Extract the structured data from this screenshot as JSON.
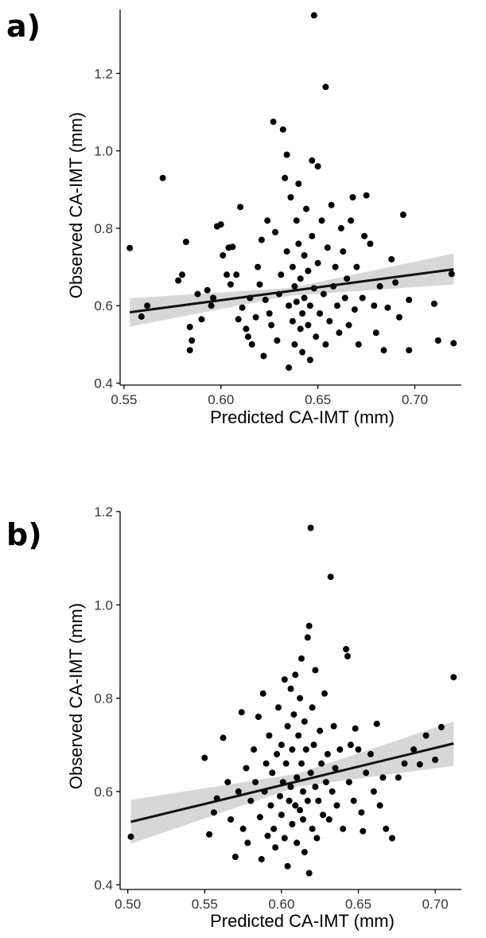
{
  "chart_data": [
    {
      "type": "scatter",
      "panel_label": "a)",
      "xlabel": "Predicted CA-IMT (mm)",
      "ylabel": "Observed CA-IMT (mm)",
      "xlim": [
        0.548,
        0.724
      ],
      "ylim": [
        0.395,
        1.365
      ],
      "x_ticks": [
        0.55,
        0.6,
        0.65,
        0.7
      ],
      "x_tick_labels": [
        "0.55",
        "0.60",
        "0.65",
        "0.70"
      ],
      "y_ticks": [
        0.4,
        0.6,
        0.8,
        1.0,
        1.2
      ],
      "y_tick_labels": [
        "0.4",
        "0.6",
        "0.8",
        "1.0",
        "1.2"
      ],
      "fit_line": {
        "x": [
          0.553,
          0.72
        ],
        "y": [
          0.583,
          0.694
        ]
      },
      "confidence_band": {
        "x": [
          0.553,
          0.636,
          0.72
        ],
        "lower": [
          0.546,
          0.626,
          0.655
        ],
        "upper": [
          0.619,
          0.646,
          0.735
        ]
      },
      "points": [
        {
          "x": 0.553,
          "y": 0.749
        },
        {
          "x": 0.559,
          "y": 0.572
        },
        {
          "x": 0.562,
          "y": 0.6
        },
        {
          "x": 0.57,
          "y": 0.93
        },
        {
          "x": 0.578,
          "y": 0.665
        },
        {
          "x": 0.58,
          "y": 0.68
        },
        {
          "x": 0.582,
          "y": 0.765
        },
        {
          "x": 0.584,
          "y": 0.545
        },
        {
          "x": 0.584,
          "y": 0.485
        },
        {
          "x": 0.585,
          "y": 0.51
        },
        {
          "x": 0.588,
          "y": 0.63
        },
        {
          "x": 0.59,
          "y": 0.565
        },
        {
          "x": 0.593,
          "y": 0.64
        },
        {
          "x": 0.595,
          "y": 0.6
        },
        {
          "x": 0.596,
          "y": 0.62
        },
        {
          "x": 0.598,
          "y": 0.805
        },
        {
          "x": 0.6,
          "y": 0.81
        },
        {
          "x": 0.601,
          "y": 0.73
        },
        {
          "x": 0.603,
          "y": 0.68
        },
        {
          "x": 0.604,
          "y": 0.75
        },
        {
          "x": 0.605,
          "y": 0.655
        },
        {
          "x": 0.606,
          "y": 0.752
        },
        {
          "x": 0.608,
          "y": 0.68
        },
        {
          "x": 0.609,
          "y": 0.565
        },
        {
          "x": 0.61,
          "y": 0.855
        },
        {
          "x": 0.611,
          "y": 0.595
        },
        {
          "x": 0.613,
          "y": 0.54
        },
        {
          "x": 0.614,
          "y": 0.52
        },
        {
          "x": 0.615,
          "y": 0.62
        },
        {
          "x": 0.616,
          "y": 0.5
        },
        {
          "x": 0.618,
          "y": 0.57
        },
        {
          "x": 0.619,
          "y": 0.7
        },
        {
          "x": 0.62,
          "y": 0.655
        },
        {
          "x": 0.621,
          "y": 0.77
        },
        {
          "x": 0.622,
          "y": 0.47
        },
        {
          "x": 0.623,
          "y": 0.615
        },
        {
          "x": 0.624,
          "y": 0.82
        },
        {
          "x": 0.625,
          "y": 0.58
        },
        {
          "x": 0.626,
          "y": 0.55
        },
        {
          "x": 0.627,
          "y": 1.075
        },
        {
          "x": 0.628,
          "y": 0.79
        },
        {
          "x": 0.629,
          "y": 0.51
        },
        {
          "x": 0.63,
          "y": 0.63
        },
        {
          "x": 0.631,
          "y": 0.68
        },
        {
          "x": 0.632,
          "y": 1.055
        },
        {
          "x": 0.633,
          "y": 0.93
        },
        {
          "x": 0.634,
          "y": 0.99
        },
        {
          "x": 0.634,
          "y": 0.74
        },
        {
          "x": 0.635,
          "y": 0.6
        },
        {
          "x": 0.635,
          "y": 0.44
        },
        {
          "x": 0.636,
          "y": 0.88
        },
        {
          "x": 0.637,
          "y": 0.56
        },
        {
          "x": 0.637,
          "y": 0.7
        },
        {
          "x": 0.638,
          "y": 0.65
        },
        {
          "x": 0.638,
          "y": 0.5
        },
        {
          "x": 0.639,
          "y": 0.82
        },
        {
          "x": 0.639,
          "y": 0.61
        },
        {
          "x": 0.64,
          "y": 0.915
        },
        {
          "x": 0.64,
          "y": 0.76
        },
        {
          "x": 0.641,
          "y": 0.54
        },
        {
          "x": 0.641,
          "y": 0.67
        },
        {
          "x": 0.642,
          "y": 0.58
        },
        {
          "x": 0.642,
          "y": 0.48
        },
        {
          "x": 0.643,
          "y": 0.73
        },
        {
          "x": 0.643,
          "y": 0.62
        },
        {
          "x": 0.644,
          "y": 0.85
        },
        {
          "x": 0.645,
          "y": 0.55
        },
        {
          "x": 0.645,
          "y": 0.69
        },
        {
          "x": 0.646,
          "y": 0.6
        },
        {
          "x": 0.646,
          "y": 0.46
        },
        {
          "x": 0.647,
          "y": 0.78
        },
        {
          "x": 0.647,
          "y": 0.975
        },
        {
          "x": 0.648,
          "y": 0.645
        },
        {
          "x": 0.648,
          "y": 1.35
        },
        {
          "x": 0.649,
          "y": 0.52
        },
        {
          "x": 0.65,
          "y": 0.96
        },
        {
          "x": 0.65,
          "y": 0.71
        },
        {
          "x": 0.651,
          "y": 0.58
        },
        {
          "x": 0.652,
          "y": 0.82
        },
        {
          "x": 0.653,
          "y": 0.63
        },
        {
          "x": 0.654,
          "y": 1.165
        },
        {
          "x": 0.654,
          "y": 0.5
        },
        {
          "x": 0.655,
          "y": 0.75
        },
        {
          "x": 0.656,
          "y": 0.56
        },
        {
          "x": 0.657,
          "y": 0.86
        },
        {
          "x": 0.658,
          "y": 0.65
        },
        {
          "x": 0.659,
          "y": 0.7
        },
        {
          "x": 0.66,
          "y": 0.6
        },
        {
          "x": 0.661,
          "y": 0.53
        },
        {
          "x": 0.662,
          "y": 0.8
        },
        {
          "x": 0.663,
          "y": 0.74
        },
        {
          "x": 0.664,
          "y": 0.62
        },
        {
          "x": 0.665,
          "y": 0.67
        },
        {
          "x": 0.666,
          "y": 0.55
        },
        {
          "x": 0.667,
          "y": 0.82
        },
        {
          "x": 0.668,
          "y": 0.88
        },
        {
          "x": 0.669,
          "y": 0.59
        },
        {
          "x": 0.67,
          "y": 0.7
        },
        {
          "x": 0.671,
          "y": 0.5
        },
        {
          "x": 0.673,
          "y": 0.62
        },
        {
          "x": 0.674,
          "y": 0.78
        },
        {
          "x": 0.675,
          "y": 0.885
        },
        {
          "x": 0.677,
          "y": 0.76
        },
        {
          "x": 0.679,
          "y": 0.6
        },
        {
          "x": 0.68,
          "y": 0.53
        },
        {
          "x": 0.682,
          "y": 0.65
        },
        {
          "x": 0.684,
          "y": 0.485
        },
        {
          "x": 0.686,
          "y": 0.595
        },
        {
          "x": 0.688,
          "y": 0.72
        },
        {
          "x": 0.69,
          "y": 0.66
        },
        {
          "x": 0.692,
          "y": 0.57
        },
        {
          "x": 0.694,
          "y": 0.835
        },
        {
          "x": 0.697,
          "y": 0.615
        },
        {
          "x": 0.697,
          "y": 0.485
        },
        {
          "x": 0.71,
          "y": 0.605
        },
        {
          "x": 0.712,
          "y": 0.51
        },
        {
          "x": 0.719,
          "y": 0.682
        },
        {
          "x": 0.72,
          "y": 0.503
        }
      ]
    },
    {
      "type": "scatter",
      "panel_label": "b)",
      "xlabel": "Predicted CA-IMT (mm)",
      "ylabel": "Observed CA-IMT (mm)",
      "xlim": [
        0.495,
        0.717
      ],
      "ylim": [
        0.39,
        1.2
      ],
      "x_ticks": [
        0.5,
        0.55,
        0.6,
        0.65,
        0.7
      ],
      "x_tick_labels": [
        "0.50",
        "0.55",
        "0.60",
        "0.65",
        "0.70"
      ],
      "y_ticks": [
        0.4,
        0.6,
        0.8,
        1.0,
        1.2
      ],
      "y_tick_labels": [
        "0.4",
        "0.6",
        "0.8",
        "1.0",
        "1.2"
      ],
      "fit_line": {
        "x": [
          0.502,
          0.712
        ],
        "y": [
          0.535,
          0.703
        ]
      },
      "confidence_band": {
        "x": [
          0.502,
          0.61,
          0.712
        ],
        "lower": [
          0.488,
          0.61,
          0.655
        ],
        "upper": [
          0.582,
          0.638,
          0.75
        ]
      },
      "points": [
        {
          "x": 0.502,
          "y": 0.503
        },
        {
          "x": 0.55,
          "y": 0.672
        },
        {
          "x": 0.553,
          "y": 0.508
        },
        {
          "x": 0.556,
          "y": 0.555
        },
        {
          "x": 0.558,
          "y": 0.585
        },
        {
          "x": 0.562,
          "y": 0.715
        },
        {
          "x": 0.565,
          "y": 0.62
        },
        {
          "x": 0.567,
          "y": 0.54
        },
        {
          "x": 0.57,
          "y": 0.46
        },
        {
          "x": 0.572,
          "y": 0.6
        },
        {
          "x": 0.574,
          "y": 0.77
        },
        {
          "x": 0.575,
          "y": 0.52
        },
        {
          "x": 0.577,
          "y": 0.65
        },
        {
          "x": 0.578,
          "y": 0.49
        },
        {
          "x": 0.58,
          "y": 0.58
        },
        {
          "x": 0.582,
          "y": 0.69
        },
        {
          "x": 0.583,
          "y": 0.62
        },
        {
          "x": 0.585,
          "y": 0.76
        },
        {
          "x": 0.586,
          "y": 0.545
        },
        {
          "x": 0.587,
          "y": 0.455
        },
        {
          "x": 0.588,
          "y": 0.81
        },
        {
          "x": 0.589,
          "y": 0.6
        },
        {
          "x": 0.59,
          "y": 0.66
        },
        {
          "x": 0.591,
          "y": 0.505
        },
        {
          "x": 0.592,
          "y": 0.72
        },
        {
          "x": 0.593,
          "y": 0.57
        },
        {
          "x": 0.594,
          "y": 0.64
        },
        {
          "x": 0.595,
          "y": 0.52
        },
        {
          "x": 0.596,
          "y": 0.48
        },
        {
          "x": 0.597,
          "y": 0.68
        },
        {
          "x": 0.598,
          "y": 0.78
        },
        {
          "x": 0.599,
          "y": 0.59
        },
        {
          "x": 0.6,
          "y": 0.55
        },
        {
          "x": 0.6,
          "y": 0.7
        },
        {
          "x": 0.601,
          "y": 0.62
        },
        {
          "x": 0.602,
          "y": 0.84
        },
        {
          "x": 0.602,
          "y": 0.5
        },
        {
          "x": 0.603,
          "y": 0.66
        },
        {
          "x": 0.604,
          "y": 0.74
        },
        {
          "x": 0.604,
          "y": 0.44
        },
        {
          "x": 0.605,
          "y": 0.58
        },
        {
          "x": 0.606,
          "y": 0.82
        },
        {
          "x": 0.606,
          "y": 0.61
        },
        {
          "x": 0.607,
          "y": 0.53
        },
        {
          "x": 0.607,
          "y": 0.69
        },
        {
          "x": 0.608,
          "y": 0.765
        },
        {
          "x": 0.609,
          "y": 0.57
        },
        {
          "x": 0.609,
          "y": 0.85
        },
        {
          "x": 0.61,
          "y": 0.63
        },
        {
          "x": 0.61,
          "y": 0.49
        },
        {
          "x": 0.611,
          "y": 0.72
        },
        {
          "x": 0.612,
          "y": 0.56
        },
        {
          "x": 0.612,
          "y": 0.8
        },
        {
          "x": 0.613,
          "y": 0.66
        },
        {
          "x": 0.613,
          "y": 0.885
        },
        {
          "x": 0.614,
          "y": 0.54
        },
        {
          "x": 0.614,
          "y": 0.6
        },
        {
          "x": 0.615,
          "y": 0.47
        },
        {
          "x": 0.615,
          "y": 0.75
        },
        {
          "x": 0.616,
          "y": 0.69
        },
        {
          "x": 0.617,
          "y": 0.93
        },
        {
          "x": 0.617,
          "y": 0.58
        },
        {
          "x": 0.618,
          "y": 0.425
        },
        {
          "x": 0.618,
          "y": 0.955
        },
        {
          "x": 0.619,
          "y": 1.165
        },
        {
          "x": 0.619,
          "y": 0.64
        },
        {
          "x": 0.62,
          "y": 0.52
        },
        {
          "x": 0.62,
          "y": 0.78
        },
        {
          "x": 0.621,
          "y": 0.7
        },
        {
          "x": 0.622,
          "y": 0.61
        },
        {
          "x": 0.622,
          "y": 0.86
        },
        {
          "x": 0.623,
          "y": 0.5
        },
        {
          "x": 0.624,
          "y": 0.58
        },
        {
          "x": 0.625,
          "y": 0.73
        },
        {
          "x": 0.626,
          "y": 0.66
        },
        {
          "x": 0.627,
          "y": 0.55
        },
        {
          "x": 0.628,
          "y": 0.81
        },
        {
          "x": 0.629,
          "y": 0.62
        },
        {
          "x": 0.63,
          "y": 0.68
        },
        {
          "x": 0.631,
          "y": 0.54
        },
        {
          "x": 0.632,
          "y": 1.06
        },
        {
          "x": 0.633,
          "y": 0.6
        },
        {
          "x": 0.634,
          "y": 0.74
        },
        {
          "x": 0.635,
          "y": 0.65
        },
        {
          "x": 0.636,
          "y": 0.57
        },
        {
          "x": 0.638,
          "y": 0.69
        },
        {
          "x": 0.64,
          "y": 0.52
        },
        {
          "x": 0.642,
          "y": 0.905
        },
        {
          "x": 0.643,
          "y": 0.89
        },
        {
          "x": 0.644,
          "y": 0.62
        },
        {
          "x": 0.645,
          "y": 0.7
        },
        {
          "x": 0.647,
          "y": 0.58
        },
        {
          "x": 0.648,
          "y": 0.735
        },
        {
          "x": 0.65,
          "y": 0.69
        },
        {
          "x": 0.652,
          "y": 0.555
        },
        {
          "x": 0.653,
          "y": 0.515
        },
        {
          "x": 0.655,
          "y": 0.64
        },
        {
          "x": 0.658,
          "y": 0.68
        },
        {
          "x": 0.66,
          "y": 0.6
        },
        {
          "x": 0.662,
          "y": 0.745
        },
        {
          "x": 0.664,
          "y": 0.57
        },
        {
          "x": 0.666,
          "y": 0.63
        },
        {
          "x": 0.668,
          "y": 0.52
        },
        {
          "x": 0.672,
          "y": 0.5
        },
        {
          "x": 0.676,
          "y": 0.63
        },
        {
          "x": 0.68,
          "y": 0.66
        },
        {
          "x": 0.686,
          "y": 0.69
        },
        {
          "x": 0.69,
          "y": 0.658
        },
        {
          "x": 0.694,
          "y": 0.72
        },
        {
          "x": 0.7,
          "y": 0.668
        },
        {
          "x": 0.704,
          "y": 0.738
        },
        {
          "x": 0.712,
          "y": 0.845
        }
      ]
    }
  ]
}
